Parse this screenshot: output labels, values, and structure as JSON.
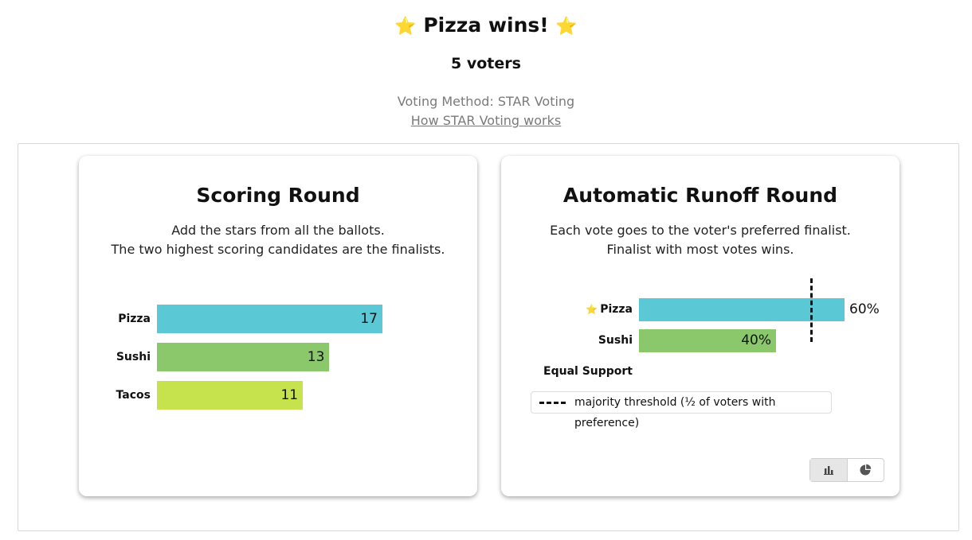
{
  "header": {
    "star_glyph": "⭐",
    "title": "Pizza wins!",
    "voters": "5 voters",
    "method": "Voting Method: STAR Voting",
    "how_link": "How STAR Voting works"
  },
  "scoring": {
    "title": "Scoring Round",
    "desc_line1": "Add the stars from all the ballots.",
    "desc_line2": "The two highest scoring candidates are the finalists.",
    "chart_data": {
      "type": "bar",
      "orientation": "horizontal",
      "categories": [
        "Pizza",
        "Sushi",
        "Tacos"
      ],
      "values": [
        17,
        13,
        11
      ],
      "colors": [
        "#5bc8d6",
        "#8ac86b",
        "#c6e34d"
      ]
    }
  },
  "runoff": {
    "title": "Automatic Runoff Round",
    "desc_line1": "Each vote goes to the voter's preferred finalist.",
    "desc_line2": "Finalist with most votes wins.",
    "winner_star": "⭐",
    "chart_data": {
      "type": "bar",
      "orientation": "horizontal",
      "categories": [
        "Pizza",
        "Sushi",
        "Equal Support"
      ],
      "values": [
        60,
        40,
        0
      ],
      "value_labels": [
        "60%",
        "40%",
        ""
      ],
      "colors": [
        "#5bc8d6",
        "#8ac86b",
        "#cccccc"
      ],
      "threshold_percent": 50
    },
    "legend_text": "majority threshold (½ of voters with preference)",
    "view_toggle": {
      "active": "bar-chart",
      "options": [
        "bar-chart-icon",
        "pie-chart-icon"
      ]
    }
  },
  "colors": {
    "pizza": "#5bc8d6",
    "sushi": "#8ac86b",
    "tacos": "#c6e34d",
    "star": "#f5b301"
  }
}
